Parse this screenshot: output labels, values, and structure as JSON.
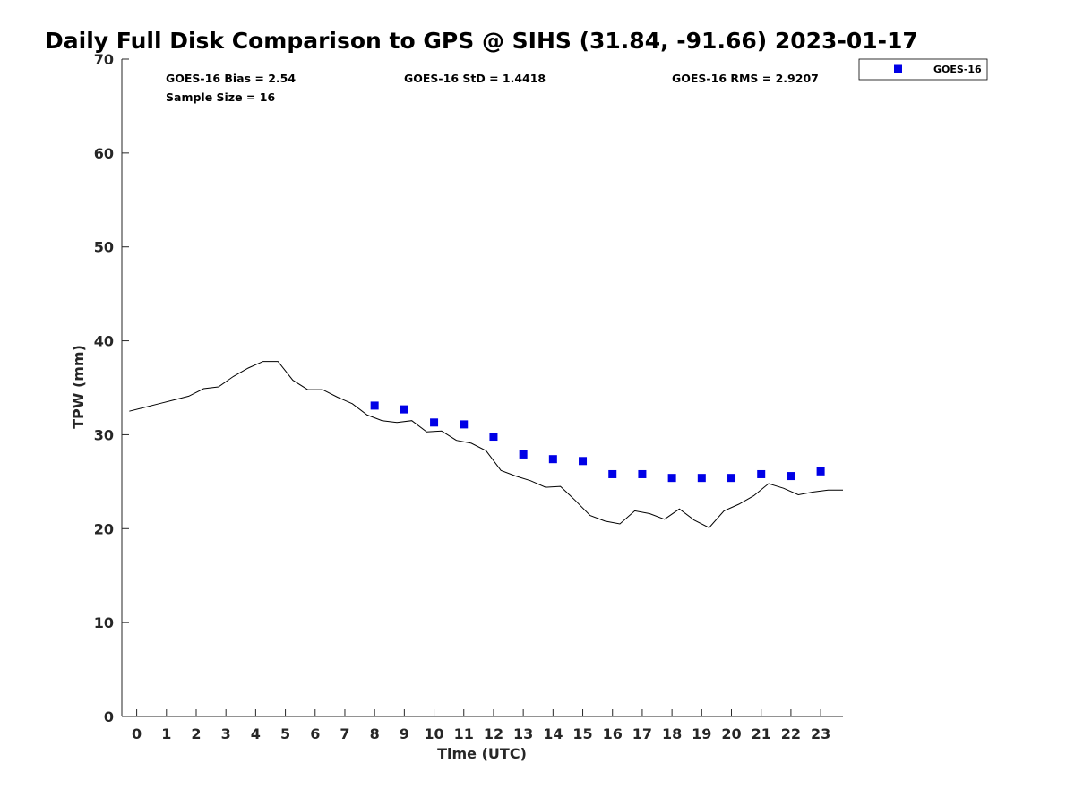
{
  "chart_data": {
    "type": "line",
    "title": "Daily Full Disk Comparison to GPS @ SIHS (31.84, -91.66) 2023-01-17",
    "xlabel": "Time (UTC)",
    "ylabel": "TPW (mm)",
    "xlim": [
      -0.5,
      23.75
    ],
    "ylim": [
      0,
      70
    ],
    "x_ticks": [
      "0",
      "1",
      "2",
      "3",
      "4",
      "5",
      "6",
      "7",
      "8",
      "9",
      "10",
      "11",
      "12",
      "13",
      "14",
      "15",
      "16",
      "17",
      "18",
      "19",
      "20",
      "21",
      "22",
      "23"
    ],
    "y_ticks": [
      "0",
      "10",
      "20",
      "30",
      "40",
      "50",
      "60",
      "70"
    ],
    "grid": false,
    "legend": {
      "position": "top-right",
      "entries": [
        "GOES-16"
      ]
    },
    "stats": {
      "bias": "GOES-16 Bias = 2.54",
      "std": "GOES-16 StD = 1.4418",
      "rms": "GOES-16 RMS = 2.9207",
      "sample_size": "Sample Size = 16"
    },
    "series": [
      {
        "kind": "line",
        "color": "#000000",
        "x": [
          -0.25,
          0.25,
          0.75,
          1.25,
          1.75,
          2.25,
          2.75,
          3.25,
          3.75,
          4.25,
          4.75,
          5.25,
          5.75,
          6.25,
          6.75,
          7.25,
          7.75,
          8.25,
          8.75,
          9.25,
          9.75,
          10.25,
          10.75,
          11.25,
          11.75,
          12.25,
          12.75,
          13.25,
          13.75,
          14.25,
          14.75,
          15.25,
          15.75,
          16.25,
          16.75,
          17.25,
          17.75,
          18.25,
          18.75,
          19.25,
          19.75,
          20.25,
          20.75,
          21.25,
          21.75,
          22.25,
          22.75,
          23.25,
          23.75
        ],
        "values": [
          32.5,
          32.9,
          33.3,
          33.7,
          34.1,
          34.9,
          35.1,
          36.2,
          37.1,
          37.8,
          37.8,
          35.8,
          34.8,
          34.8,
          34.0,
          33.3,
          32.1,
          31.5,
          31.3,
          31.5,
          30.3,
          30.4,
          29.4,
          29.1,
          28.3,
          26.2,
          25.6,
          25.1,
          24.4,
          24.5,
          23.0,
          21.4,
          20.8,
          20.5,
          21.9,
          21.6,
          21.0,
          22.1,
          20.9,
          20.1,
          21.9,
          22.6,
          23.5,
          24.8,
          24.3,
          23.6,
          23.9,
          24.1,
          24.1
        ]
      },
      {
        "kind": "scatter",
        "name": "GOES-16",
        "color": "#0000e6",
        "x": [
          8,
          9,
          10,
          11,
          12,
          13,
          14,
          15,
          16,
          17,
          18,
          19,
          20,
          21,
          22,
          23
        ],
        "values": [
          33.1,
          32.7,
          31.3,
          31.1,
          29.8,
          27.9,
          27.4,
          27.2,
          25.8,
          25.8,
          25.4,
          25.4,
          25.4,
          25.8,
          25.6,
          26.1
        ]
      }
    ]
  }
}
